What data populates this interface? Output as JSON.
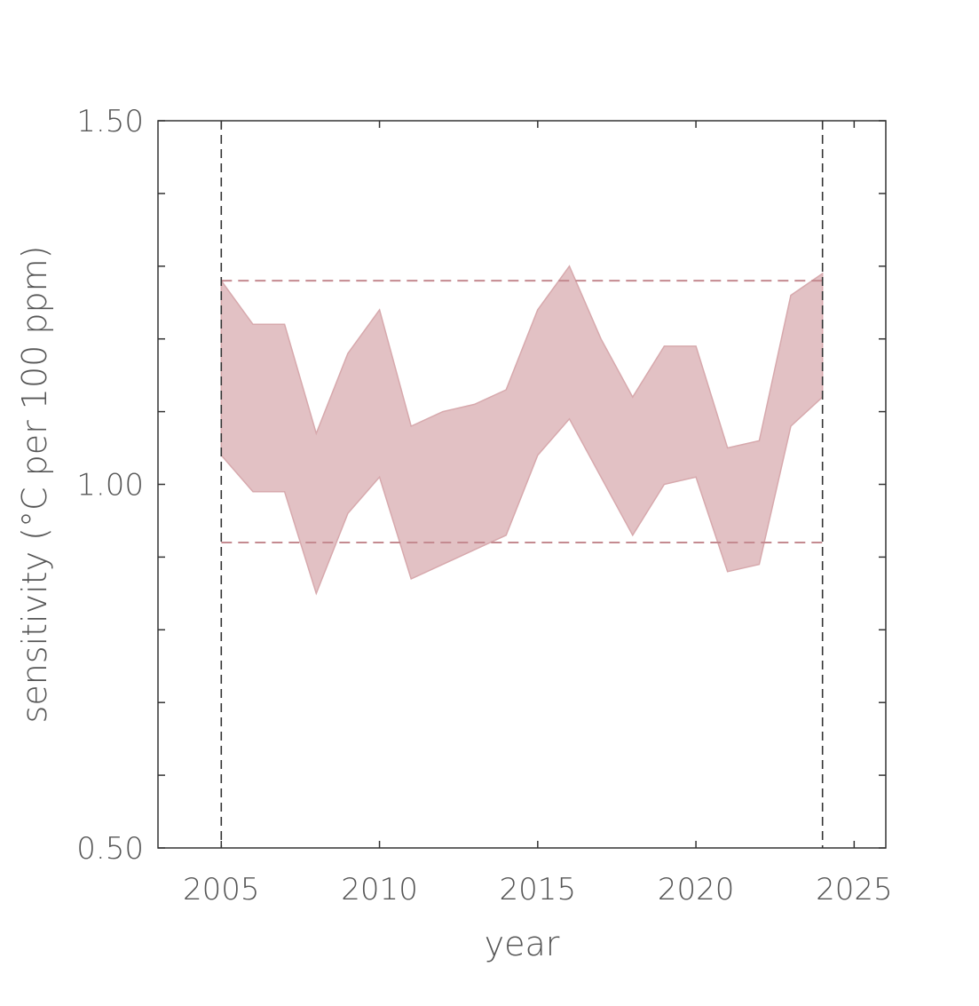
{
  "chart_data": {
    "type": "area",
    "xlabel": "year",
    "ylabel": "sensitivity (°C per 100 ppm)",
    "xlim": [
      2003,
      2026
    ],
    "ylim": [
      0.5,
      1.5
    ],
    "x_ticks": [
      2005,
      2010,
      2015,
      2020,
      2025
    ],
    "x_tick_labels": [
      "2005",
      "2010",
      "2015",
      "2020",
      "2025"
    ],
    "x_minor_ticks": [
      2005,
      2010,
      2015,
      2020,
      2025
    ],
    "y_ticks": [
      0.5,
      0.6,
      0.7,
      0.8,
      0.9,
      1.0,
      1.1,
      1.2,
      1.3,
      1.4,
      1.5
    ],
    "y_tick_labels": {
      "0.5": "0.50",
      "1.0": "1.00",
      "1.5": "1.50"
    },
    "grid": false,
    "band_color": "#d7a9ad",
    "band_opacity": 0.72,
    "x": [
      2005,
      2006,
      2007,
      2008,
      2009,
      2010,
      2011,
      2012,
      2013,
      2014,
      2015,
      2016,
      2017,
      2018,
      2019,
      2020,
      2021,
      2022,
      2023,
      2024
    ],
    "upper": [
      1.28,
      1.22,
      1.22,
      1.07,
      1.18,
      1.24,
      1.08,
      1.1,
      1.11,
      1.13,
      1.24,
      1.3,
      1.2,
      1.12,
      1.19,
      1.19,
      1.05,
      1.06,
      1.26,
      1.29
    ],
    "lower": [
      1.04,
      0.99,
      0.99,
      0.85,
      0.96,
      1.01,
      0.87,
      0.89,
      0.91,
      0.93,
      1.04,
      1.09,
      1.01,
      0.93,
      1.0,
      1.01,
      0.88,
      0.89,
      1.08,
      1.12
    ],
    "reference_lines": {
      "horizontal": {
        "values": [
          1.28,
          0.92
        ],
        "color": "#c48a90"
      },
      "vertical": {
        "values": [
          2005,
          2024
        ],
        "color": "#333333"
      }
    }
  }
}
